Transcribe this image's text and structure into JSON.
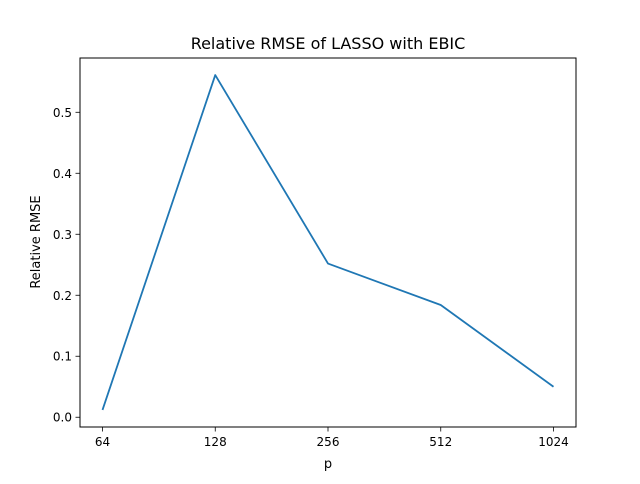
{
  "chart_data": {
    "type": "line",
    "title": "Relative RMSE of LASSO with EBIC",
    "xlabel": "p",
    "ylabel": "Relative RMSE",
    "categories": [
      "64",
      "128",
      "256",
      "512",
      "1024"
    ],
    "x": [
      64,
      128,
      256,
      512,
      1024
    ],
    "series": [
      {
        "values": [
          0.012,
          0.561,
          0.252,
          0.184,
          0.05
        ],
        "color": "#1f77b4"
      }
    ],
    "ylim": [
      -0.016,
      0.589
    ],
    "yticks": [
      0.0,
      0.1,
      0.2,
      0.3,
      0.4,
      0.5
    ],
    "ytick_labels": [
      "0.0",
      "0.1",
      "0.2",
      "0.3",
      "0.4",
      "0.5"
    ],
    "grid": false,
    "legend": "none"
  }
}
